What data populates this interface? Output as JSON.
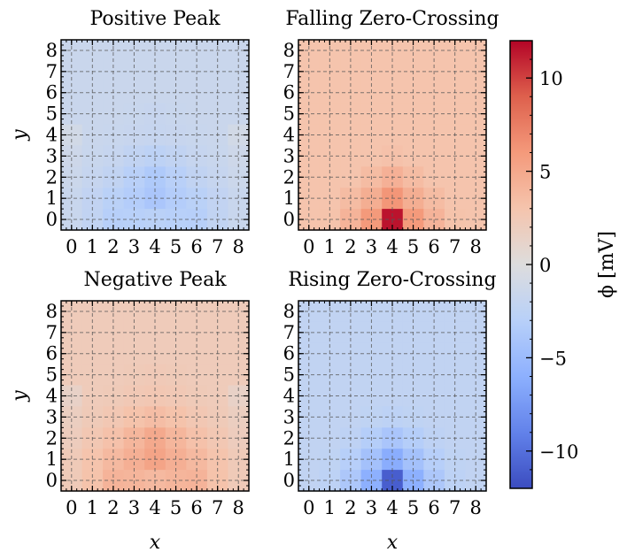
{
  "chart_data": {
    "type": "heatmap",
    "colormap": "coolwarm",
    "clim": [
      -12,
      12
    ],
    "colorbar": {
      "label": "ϕ [mV]",
      "ticks": [
        10,
        5,
        0,
        -5,
        -10
      ],
      "tick_labels": [
        "10",
        "5",
        "0",
        "−5",
        "−10"
      ]
    },
    "x_ticks": [
      "0",
      "1",
      "2",
      "3",
      "4",
      "5",
      "6",
      "7",
      "8"
    ],
    "y_ticks": [
      "8",
      "7",
      "6",
      "5",
      "4",
      "3",
      "2",
      "1",
      "0"
    ],
    "xlabel": "x",
    "ylabel": "y",
    "grid": true,
    "panels": [
      {
        "title": "Positive Peak",
        "values": [
          [
            -1.6,
            -1.6,
            -1.6,
            -1.6,
            -1.6,
            -1.6,
            -1.6,
            -1.6,
            -1.6
          ],
          [
            -1.6,
            -1.6,
            -1.6,
            -1.6,
            -1.6,
            -1.6,
            -1.6,
            -1.6,
            -1.6
          ],
          [
            -1.6,
            -1.6,
            -1.6,
            -1.6,
            -1.6,
            -1.6,
            -1.6,
            -1.6,
            -1.6
          ],
          [
            -1.6,
            -1.6,
            -1.6,
            -1.7,
            -1.8,
            -1.7,
            -1.6,
            -1.6,
            -1.6
          ],
          [
            -1.0,
            -1.6,
            -1.7,
            -1.8,
            -1.9,
            -1.8,
            -1.7,
            -1.6,
            -1.0
          ],
          [
            -1.3,
            -1.7,
            -1.9,
            -2.3,
            -2.6,
            -2.3,
            -1.9,
            -1.7,
            -1.3
          ],
          [
            -1.5,
            -1.9,
            -2.3,
            -2.9,
            -3.6,
            -2.9,
            -2.3,
            -1.9,
            -1.5
          ],
          [
            -1.7,
            -2.2,
            -2.8,
            -3.3,
            -3.9,
            -3.3,
            -2.8,
            -2.2,
            -1.7
          ],
          [
            -1.7,
            -2.3,
            -3.1,
            -3.0,
            -2.8,
            -3.0,
            -3.1,
            -2.3,
            -1.7
          ]
        ]
      },
      {
        "title": "Falling Zero-Crossing",
        "values": [
          [
            3.0,
            3.0,
            3.0,
            3.0,
            3.0,
            3.0,
            3.0,
            3.0,
            3.0
          ],
          [
            3.0,
            3.0,
            3.0,
            3.0,
            3.0,
            3.0,
            3.0,
            3.0,
            3.0
          ],
          [
            3.0,
            3.0,
            3.0,
            3.0,
            3.0,
            3.0,
            3.0,
            3.0,
            3.0
          ],
          [
            3.0,
            3.0,
            3.0,
            3.0,
            3.0,
            3.0,
            3.0,
            3.0,
            3.0
          ],
          [
            3.0,
            3.0,
            3.0,
            3.0,
            3.0,
            3.0,
            3.0,
            3.0,
            3.0
          ],
          [
            3.0,
            3.0,
            3.0,
            3.0,
            3.2,
            3.0,
            3.0,
            3.0,
            3.0
          ],
          [
            3.0,
            3.0,
            3.0,
            3.6,
            4.4,
            3.6,
            3.0,
            3.0,
            3.0
          ],
          [
            3.0,
            3.0,
            3.6,
            4.6,
            6.2,
            4.6,
            3.6,
            3.0,
            3.0
          ],
          [
            3.0,
            3.1,
            4.2,
            6.0,
            11.5,
            6.0,
            4.2,
            3.1,
            3.0
          ]
        ]
      },
      {
        "title": "Negative Peak",
        "values": [
          [
            2.2,
            2.2,
            2.2,
            2.2,
            2.2,
            2.2,
            2.2,
            2.2,
            2.2
          ],
          [
            2.2,
            2.2,
            2.2,
            2.2,
            2.2,
            2.2,
            2.2,
            2.2,
            2.2
          ],
          [
            2.2,
            2.2,
            2.2,
            2.2,
            2.2,
            2.2,
            2.2,
            2.2,
            2.2
          ],
          [
            2.2,
            2.2,
            2.2,
            2.3,
            2.4,
            2.3,
            2.2,
            2.2,
            2.2
          ],
          [
            1.4,
            2.2,
            2.3,
            2.5,
            2.6,
            2.5,
            2.3,
            2.2,
            1.4
          ],
          [
            1.8,
            2.3,
            2.6,
            3.1,
            3.5,
            3.1,
            2.6,
            2.3,
            1.8
          ],
          [
            2.0,
            2.6,
            3.2,
            4.0,
            4.9,
            4.0,
            3.2,
            2.6,
            2.0
          ],
          [
            2.3,
            3.0,
            3.8,
            4.5,
            5.3,
            4.5,
            3.8,
            3.0,
            2.3
          ],
          [
            2.3,
            3.1,
            4.2,
            4.1,
            3.8,
            4.1,
            4.2,
            3.1,
            2.3
          ]
        ]
      },
      {
        "title": "Rising Zero-Crossing",
        "values": [
          [
            -2.3,
            -2.3,
            -2.3,
            -2.3,
            -2.3,
            -2.3,
            -2.3,
            -2.3,
            -2.3
          ],
          [
            -2.3,
            -2.3,
            -2.3,
            -2.3,
            -2.3,
            -2.3,
            -2.3,
            -2.3,
            -2.3
          ],
          [
            -2.3,
            -2.3,
            -2.3,
            -2.3,
            -2.3,
            -2.3,
            -2.3,
            -2.3,
            -2.3
          ],
          [
            -2.3,
            -2.3,
            -2.3,
            -2.3,
            -2.3,
            -2.3,
            -2.3,
            -2.3,
            -2.3
          ],
          [
            -2.3,
            -2.3,
            -2.3,
            -2.3,
            -2.3,
            -2.3,
            -2.3,
            -2.3,
            -2.3
          ],
          [
            -2.3,
            -2.3,
            -2.3,
            -2.4,
            -2.6,
            -2.4,
            -2.3,
            -2.3,
            -2.3
          ],
          [
            -2.3,
            -2.3,
            -2.5,
            -3.2,
            -4.0,
            -3.2,
            -2.5,
            -2.3,
            -2.3
          ],
          [
            -2.3,
            -2.4,
            -3.1,
            -4.4,
            -6.2,
            -4.4,
            -3.1,
            -2.4,
            -2.3
          ],
          [
            -2.3,
            -2.6,
            -3.8,
            -6.0,
            -11.0,
            -6.0,
            -3.8,
            -2.6,
            -2.3
          ]
        ]
      }
    ]
  }
}
